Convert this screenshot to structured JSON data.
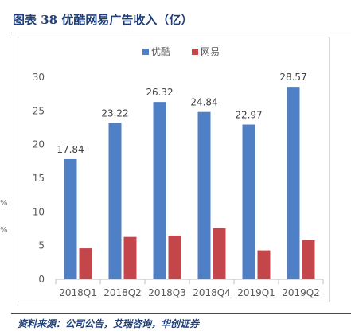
{
  "header": {
    "title": "图表 38 优酷网易广告收入（亿）"
  },
  "side_marks": [
    "%",
    "%"
  ],
  "source": "资料来源：公司公告，艾瑞咨询，华创证券",
  "chart_data": {
    "type": "bar",
    "title": "",
    "xlabel": "",
    "ylabel": "",
    "ylim": [
      0,
      30
    ],
    "yticks": [
      0,
      5,
      10,
      15,
      20,
      25,
      30
    ],
    "grid": false,
    "legend_position": "top",
    "categories": [
      "2018Q1",
      "2018Q2",
      "2018Q3",
      "2018Q4",
      "2019Q1",
      "2019Q2"
    ],
    "series": [
      {
        "name": "优酷",
        "color": "#4f7fc5",
        "values": [
          17.84,
          23.22,
          26.32,
          24.84,
          22.97,
          28.57
        ],
        "labels": [
          "17.84",
          "23.22",
          "26.32",
          "24.84",
          "22.97",
          "28.57"
        ]
      },
      {
        "name": "网易",
        "color": "#c3474a",
        "values": [
          4.6,
          6.3,
          6.5,
          7.6,
          4.3,
          5.8
        ]
      }
    ]
  }
}
